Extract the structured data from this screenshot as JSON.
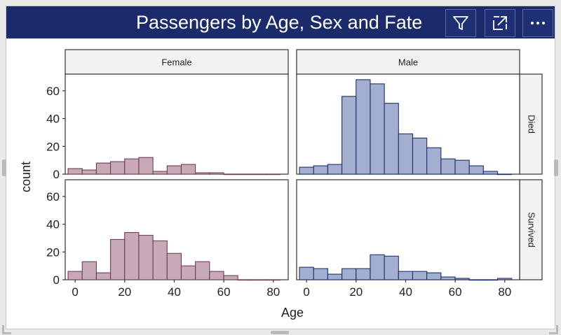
{
  "visual": {
    "title": "Passengers by Age, Sex and Fate",
    "buttons": [
      {
        "icon": "filter-icon"
      },
      {
        "icon": "focus-mode-icon"
      },
      {
        "icon": "more-options-icon"
      }
    ]
  },
  "colors": {
    "header_bg": "#1b2a6b",
    "female_fill": "#c7a9b8",
    "female_stroke": "#6e3d56",
    "male_fill": "#a3afd0",
    "male_stroke": "#1e2f6e",
    "strip_bg": "#f2f2f2"
  },
  "chart_data": {
    "type": "bar",
    "subtype": "faceted-histogram",
    "xlabel": "Age",
    "ylabel": "count",
    "columns": [
      "Female",
      "Male"
    ],
    "rows": [
      "Died",
      "Survived"
    ],
    "xlim": [
      -4,
      86
    ],
    "ylim": [
      0,
      72
    ],
    "xticks": [
      0,
      20,
      40,
      60,
      80
    ],
    "yticks": [
      0,
      20,
      40,
      60
    ],
    "bin_width": 5.71,
    "bin_start": -2.85,
    "panels": [
      {
        "column": "Female",
        "row": "Died",
        "counts": [
          4,
          3,
          8,
          9,
          11,
          12,
          2,
          6,
          7,
          1,
          1,
          0,
          0,
          0,
          0
        ]
      },
      {
        "column": "Male",
        "row": "Died",
        "counts": [
          5,
          6,
          7,
          56,
          68,
          65,
          51,
          29,
          26,
          19,
          11,
          10,
          6,
          2,
          0
        ]
      },
      {
        "column": "Female",
        "row": "Survived",
        "counts": [
          6,
          13,
          5,
          29,
          34,
          32,
          28,
          19,
          10,
          13,
          6,
          3,
          0,
          0,
          0
        ]
      },
      {
        "column": "Male",
        "row": "Survived",
        "counts": [
          9,
          8,
          4,
          8,
          8,
          18,
          17,
          6,
          6,
          5,
          2,
          1,
          0,
          0,
          1
        ]
      }
    ]
  }
}
